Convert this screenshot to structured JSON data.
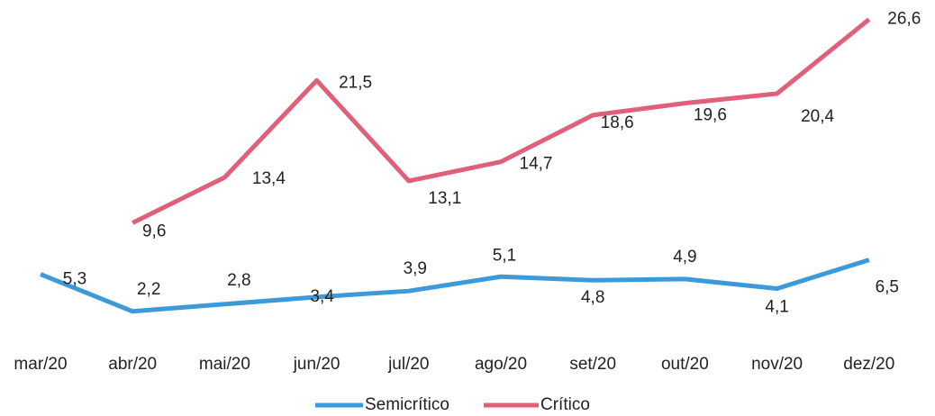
{
  "chart_data": {
    "type": "line",
    "categories": [
      "mar/20",
      "abr/20",
      "mai/20",
      "jun/20",
      "jul/20",
      "ago/20",
      "set/20",
      "out/20",
      "nov/20",
      "dez/20"
    ],
    "series": [
      {
        "name": "Semicrítico",
        "color": "#3d9ad9",
        "values": [
          5.3,
          2.2,
          2.8,
          3.4,
          3.9,
          5.1,
          4.8,
          4.9,
          4.1,
          6.5
        ],
        "value_labels": [
          "5,3",
          "2,2",
          "2,8",
          "3,4",
          "3,9",
          "5,1",
          "4,8",
          "4,9",
          "4,1",
          "6,5"
        ]
      },
      {
        "name": "Crítico",
        "color": "#e0607a",
        "values": [
          null,
          9.6,
          13.4,
          21.5,
          13.1,
          14.7,
          18.6,
          19.6,
          20.4,
          26.6
        ],
        "value_labels": [
          null,
          "9,6",
          "13,4",
          "21,5",
          "13,1",
          "14,7",
          "18,6",
          "19,6",
          "20,4",
          "26,6"
        ]
      }
    ],
    "ylim": [
      0,
      28
    ],
    "legend": "bottom"
  }
}
